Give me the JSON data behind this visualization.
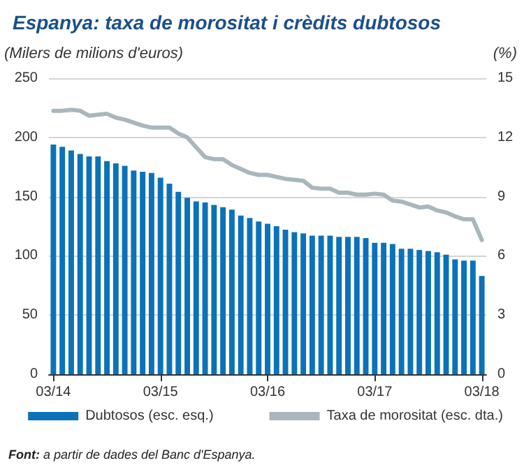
{
  "chart_data": {
    "type": "bar",
    "title": "Espanya: taxa de morositat i crèdits dubtosos",
    "ylabel": "(Milers de milions d'euros)",
    "y2label": "(%)",
    "categories": [
      "03/14",
      null,
      null,
      null,
      null,
      null,
      null,
      null,
      null,
      null,
      null,
      null,
      "03/15",
      null,
      null,
      null,
      null,
      null,
      null,
      null,
      null,
      null,
      null,
      null,
      "03/16",
      null,
      null,
      null,
      null,
      null,
      null,
      null,
      null,
      null,
      null,
      null,
      "03/17",
      null,
      null,
      null,
      null,
      null,
      null,
      null,
      null,
      null,
      null,
      null,
      "03/18"
    ],
    "series": [
      {
        "name": "Dubtosos (esc. esq.)",
        "color": "#0b72b9",
        "values": [
          194,
          192,
          189,
          186,
          184,
          184,
          180,
          178,
          176,
          172,
          171,
          170,
          166,
          161,
          154,
          149,
          146,
          145,
          143,
          141,
          139,
          134,
          132,
          129,
          127,
          125,
          122,
          120,
          119,
          117,
          117,
          117,
          116,
          116,
          116,
          115,
          111,
          111,
          110,
          106,
          106,
          105,
          104,
          103,
          101,
          97,
          96,
          96,
          83
        ]
      },
      {
        "name": "Taxa de morositat (esc. dta.)",
        "type": "line",
        "axis": "y2",
        "color": "#a9b7bd",
        "values": [
          13.35,
          13.35,
          13.4,
          13.35,
          13.1,
          13.15,
          13.2,
          13.0,
          12.9,
          12.75,
          12.6,
          12.5,
          12.5,
          12.5,
          12.2,
          12.0,
          11.5,
          11.0,
          10.9,
          10.9,
          10.6,
          10.4,
          10.2,
          10.1,
          10.1,
          10.0,
          9.9,
          9.85,
          9.8,
          9.45,
          9.4,
          9.4,
          9.2,
          9.2,
          9.1,
          9.1,
          9.15,
          9.1,
          8.8,
          8.75,
          8.6,
          8.45,
          8.5,
          8.3,
          8.2,
          8.0,
          7.85,
          7.85,
          6.8
        ]
      }
    ],
    "ylim": [
      0,
      250
    ],
    "yticks": [
      0,
      50,
      100,
      150,
      200,
      250
    ],
    "y2lim": [
      0,
      15
    ],
    "y2ticks": [
      0,
      3,
      6,
      9,
      12,
      15
    ],
    "grid": "y",
    "legend": "bottom",
    "marker": "none",
    "annotations": [
      "Font: a partir de dades del Banc d'Espanya."
    ]
  }
}
